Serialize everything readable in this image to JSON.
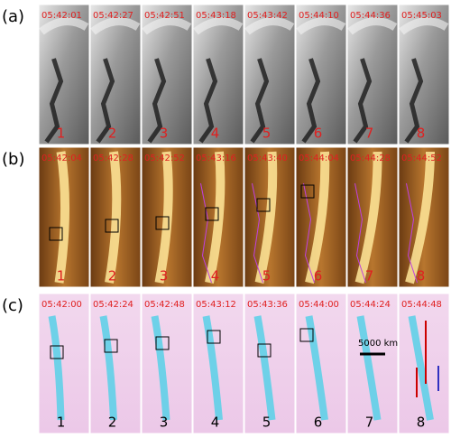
{
  "rows": [
    {
      "label": "(a)",
      "times": [
        "05:42:01",
        "05:42:27",
        "05:42:51",
        "05:43:18",
        "05:43:42",
        "05:44:10",
        "05:44:36",
        "05:45:03"
      ],
      "numbers": [
        "1",
        "2",
        "3",
        "4",
        "5",
        "6",
        "7",
        "8"
      ]
    },
    {
      "label": "(b)",
      "times": [
        "05:42:04",
        "05:42:28",
        "05:42:52",
        "05:43:16",
        "05:43:40",
        "05:44:04",
        "05:44:28",
        "05:44:52"
      ],
      "numbers": [
        "1",
        "2",
        "3",
        "4",
        "5",
        "6",
        "7",
        "8"
      ]
    },
    {
      "label": "(c)",
      "times": [
        "05:42:00",
        "05:42:24",
        "05:42:48",
        "05:43:12",
        "05:43:36",
        "05:44:00",
        "05:44:24",
        "05:44:48"
      ],
      "numbers": [
        "1",
        "2",
        "3",
        "4",
        "5",
        "6",
        "7",
        "8"
      ]
    }
  ],
  "scale_bar": "5000 km"
}
